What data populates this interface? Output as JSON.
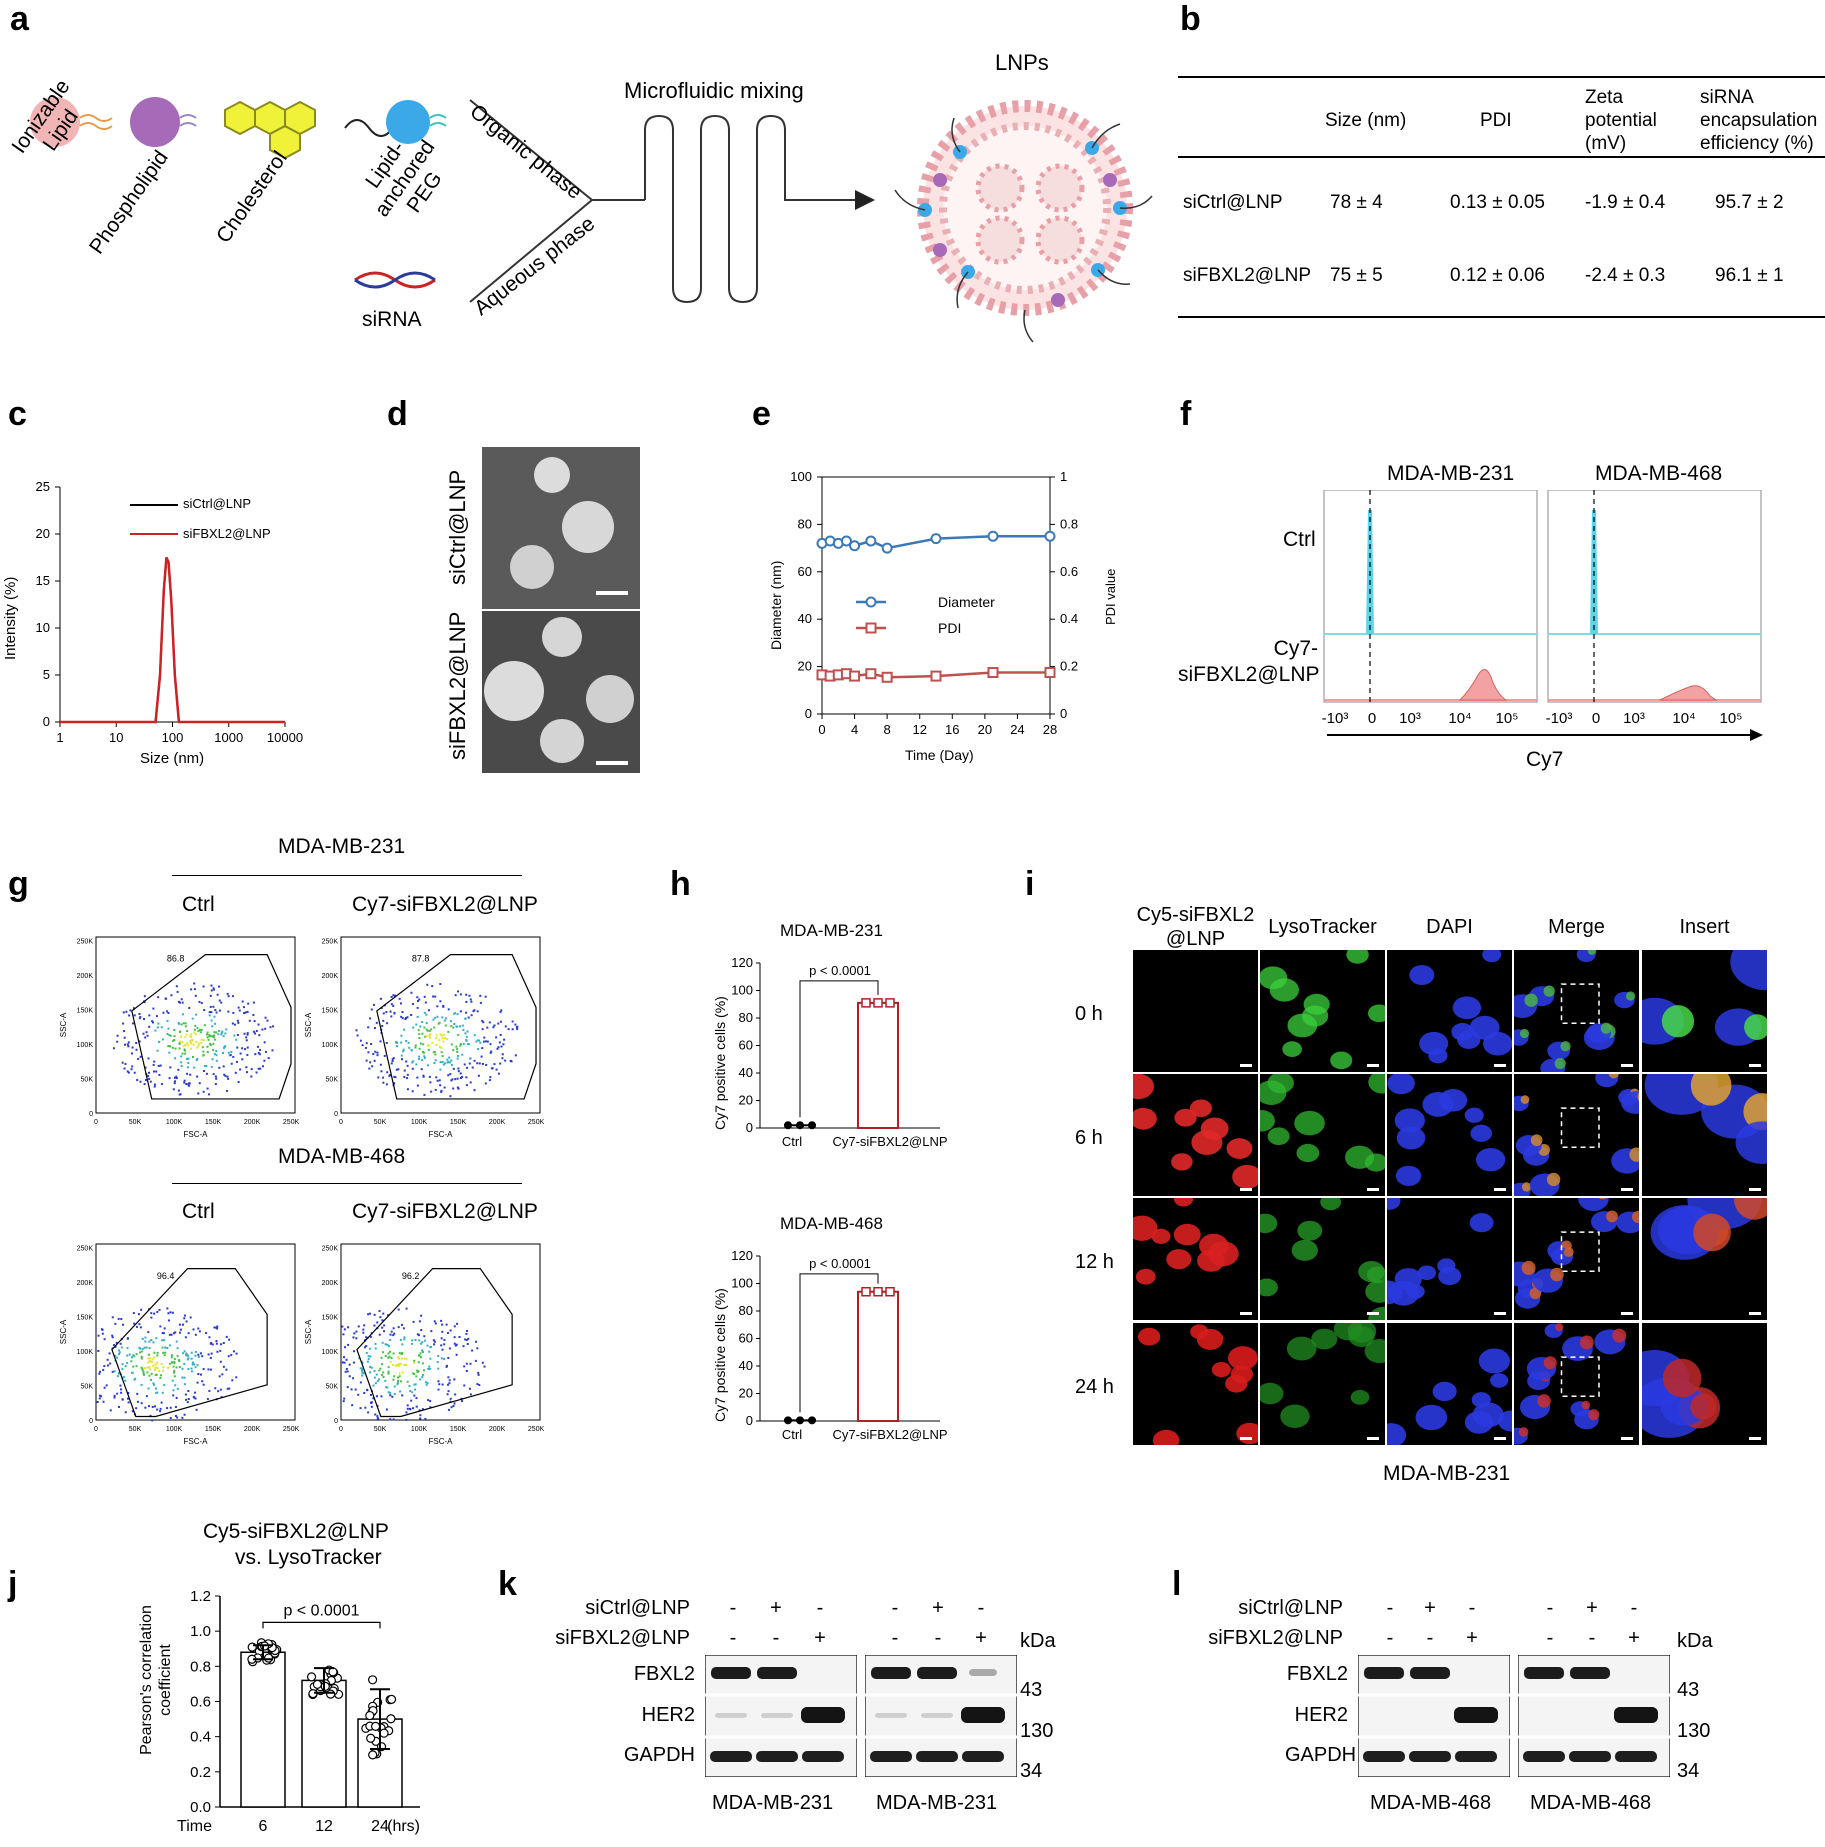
{
  "panel_labels": {
    "a": "a",
    "b": "b",
    "c": "c",
    "d": "d",
    "e": "e",
    "f": "f",
    "g": "g",
    "h": "h",
    "i": "i",
    "j": "j",
    "k": "k",
    "l": "l"
  },
  "panel_a": {
    "components": [
      "Ionizable Lipid",
      "Phospholipid",
      "Cholesterol",
      "Lipid-anchored PEG",
      "siRNA"
    ],
    "organic_phase": "Organic phase",
    "aqueous_phase": "Aqueous phase",
    "mixing": "Microfluidic mixing",
    "product": "LNPs"
  },
  "panel_b": {
    "headers": [
      "",
      "Size (nm)",
      "PDI",
      "Zeta potential (mV)",
      "siRNA encapsulation efficiency (%)"
    ],
    "rows": [
      [
        "siCtrl@LNP",
        "78 ± 4",
        "0.13 ± 0.05",
        "-1.9 ± 0.4",
        "95.7 ± 2"
      ],
      [
        "siFBXL2@LNP",
        "75 ± 5",
        "0.12 ± 0.06",
        "-2.4 ± 0.3",
        "96.1 ± 1"
      ]
    ]
  },
  "panel_c": {
    "xlabel": "Size (nm)",
    "ylabel": "Intensity (%)",
    "xticks": [
      "1",
      "10",
      "100",
      "1000",
      "10000"
    ],
    "yticks": [
      "0",
      "5",
      "10",
      "15",
      "20",
      "25"
    ],
    "legend": [
      "siCtrl@LNP",
      "siFBXL2@LNP"
    ]
  },
  "panel_d": {
    "labels": [
      "siCtrl@LNP",
      "siFBXL2@LNP"
    ]
  },
  "panel_e": {
    "xlabel": "Time (Day)",
    "ylabel_left": "Diameter (nm)",
    "ylabel_right": "PDI value",
    "xticks": [
      "0",
      "4",
      "8",
      "12",
      "16",
      "20",
      "24",
      "28"
    ],
    "yticks_left": [
      "0",
      "20",
      "40",
      "60",
      "80",
      "100"
    ],
    "yticks_right": [
      "0",
      "0.2",
      "0.4",
      "0.6",
      "0.8",
      "1"
    ],
    "legend": [
      "Diameter",
      "PDI"
    ]
  },
  "panel_f": {
    "cells": [
      "MDA-MB-231",
      "MDA-MB-468"
    ],
    "rows": [
      "Ctrl",
      "Cy7-siFBXL2@LNP"
    ],
    "xticks": [
      "-10³",
      "0",
      "10³",
      "10⁴",
      "10⁵"
    ],
    "xlabel": "Cy7"
  },
  "panel_g": {
    "cell_top": "MDA-MB-231",
    "cell_bottom": "MDA-MB-468",
    "cols": [
      "Ctrl",
      "Cy7-siFBXL2@LNP"
    ],
    "gates": [
      "86.8",
      "87.8",
      "96.4",
      "96.2"
    ],
    "xaxis": "FSC-A",
    "yaxis": "SSC-A",
    "xticks": [
      "0",
      "50K",
      "100K",
      "150K",
      "200K",
      "250K"
    ],
    "yticks": [
      "0",
      "50K",
      "100K",
      "150K",
      "200K",
      "250K"
    ]
  },
  "panel_h": {
    "titles": [
      "MDA-MB-231",
      "MDA-MB-468"
    ],
    "pvalue": "p < 0.0001",
    "ylabel": "Cy7 positive cells (%)",
    "yticks": [
      "0",
      "20",
      "40",
      "60",
      "80",
      "100",
      "120"
    ],
    "categories": [
      "Ctrl",
      "Cy7-siFBXL2@LNP"
    ]
  },
  "panel_i": {
    "cols": [
      "Cy5-siFBXL2 @LNP",
      "LysoTracker",
      "DAPI",
      "Merge",
      "Insert"
    ],
    "rows": [
      "0 h",
      "6 h",
      "12 h",
      "24 h"
    ],
    "cell": "MDA-MB-231"
  },
  "panel_j": {
    "title1": "Cy5-siFBXL2@LNP",
    "title2": "vs. LysoTracker",
    "pvalue": "p < 0.0001",
    "ylabel": "Pearson's correlation coefficient",
    "xprefix": "Time",
    "xunit": "(hrs)",
    "yticks": [
      "0.0",
      "0.2",
      "0.4",
      "0.6",
      "0.8",
      "1.0",
      "1.2"
    ]
  },
  "panel_k": {
    "rows": [
      "siCtrl@LNP",
      "siFBXL2@LNP"
    ],
    "signs": [
      [
        "-",
        "+",
        "-",
        "-",
        "+",
        "-"
      ],
      [
        "-",
        "-",
        "+",
        "-",
        "-",
        "+"
      ]
    ],
    "proteins": [
      "FBXL2",
      "HER2",
      "GAPDH"
    ],
    "kda": "kDa",
    "mw": [
      "43",
      "130",
      "34"
    ],
    "cells": [
      "MDA-MB-231",
      "MDA-MB-231"
    ]
  },
  "panel_l": {
    "rows": [
      "siCtrl@LNP",
      "siFBXL2@LNP"
    ],
    "signs": [
      [
        "-",
        "+",
        "-",
        "-",
        "+",
        "-"
      ],
      [
        "-",
        "-",
        "+",
        "-",
        "-",
        "+"
      ]
    ],
    "proteins": [
      "FBXL2",
      "HER2",
      "GAPDH"
    ],
    "kda": "kDa",
    "mw": [
      "43",
      "130",
      "34"
    ],
    "cells": [
      "MDA-MB-468",
      "MDA-MB-468"
    ]
  },
  "chart_data": [
    {
      "type": "line",
      "panel": "c",
      "xlabel": "Size (nm)",
      "ylabel": "Intensity (%)",
      "xscale": "log",
      "xlim": [
        1,
        10000
      ],
      "ylim": [
        0,
        25
      ],
      "series": [
        {
          "name": "siCtrl@LNP",
          "color": "#000000",
          "x": [
            50,
            60,
            70,
            78,
            85,
            95,
            110,
            130
          ],
          "y": [
            0,
            5,
            14,
            17.5,
            17,
            13,
            5,
            0
          ]
        },
        {
          "name": "siFBXL2@LNP",
          "color": "#cc2222",
          "x": [
            50,
            60,
            70,
            78,
            85,
            95,
            110,
            130
          ],
          "y": [
            0,
            5,
            14,
            17.5,
            17,
            13,
            5,
            0
          ]
        }
      ]
    },
    {
      "type": "line",
      "panel": "e",
      "xlabel": "Time (Day)",
      "ylabel": "Diameter (nm)",
      "y2label": "PDI value",
      "xlim": [
        0,
        28
      ],
      "ylim": [
        0,
        100
      ],
      "y2lim": [
        0,
        1
      ],
      "x": [
        0,
        1,
        2,
        3,
        4,
        6,
        8,
        14,
        21,
        28
      ],
      "series": [
        {
          "name": "Diameter",
          "axis": "left",
          "color": "#3b78b8",
          "values": [
            72,
            73,
            72,
            73,
            71,
            73,
            70,
            74,
            75,
            75
          ]
        },
        {
          "name": "PDI",
          "axis": "right",
          "color": "#c0504d",
          "values": [
            0.165,
            0.16,
            0.165,
            0.17,
            0.16,
            0.17,
            0.155,
            0.16,
            0.175,
            0.175
          ]
        }
      ]
    },
    {
      "type": "bar",
      "panel": "h-231",
      "categories": [
        "Ctrl",
        "Cy7-siFBXL2@LNP"
      ],
      "values": [
        2,
        91
      ],
      "ylim": [
        0,
        120
      ]
    },
    {
      "type": "bar",
      "panel": "h-468",
      "categories": [
        "Ctrl",
        "Cy7-siFBXL2@LNP"
      ],
      "values": [
        0.5,
        94
      ],
      "ylim": [
        0,
        120
      ]
    },
    {
      "type": "bar",
      "panel": "j",
      "categories": [
        "6",
        "12",
        "24"
      ],
      "values": [
        0.88,
        0.72,
        0.5
      ],
      "errors": [
        0.04,
        0.07,
        0.17
      ],
      "ylim": [
        0,
        1.2
      ]
    }
  ]
}
